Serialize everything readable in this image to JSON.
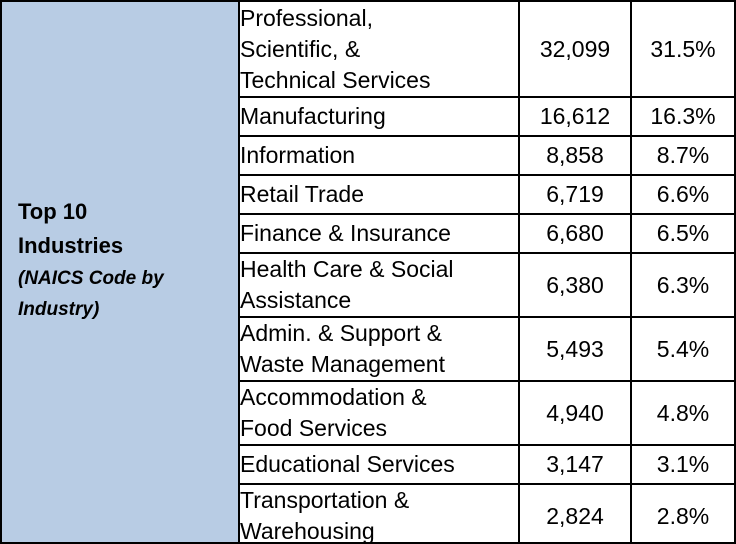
{
  "side": {
    "title_line1": "Top 10",
    "title_line2": "Industries",
    "subtitle_line1": "(NAICS Code by",
    "subtitle_line2": "Industry)"
  },
  "rows": [
    {
      "lines": [
        "Professional,",
        "Scientific, &",
        "Technical Services"
      ],
      "count": "32,099",
      "percent": "31.5%"
    },
    {
      "lines": [
        "Manufacturing"
      ],
      "count": "16,612",
      "percent": "16.3%"
    },
    {
      "lines": [
        "Information"
      ],
      "count": "8,858",
      "percent": "8.7%"
    },
    {
      "lines": [
        "Retail Trade"
      ],
      "count": "6,719",
      "percent": "6.6%"
    },
    {
      "lines": [
        "Finance & Insurance"
      ],
      "count": "6,680",
      "percent": "6.5%"
    },
    {
      "lines": [
        "Health Care & Social",
        "Assistance"
      ],
      "count": "6,380",
      "percent": "6.3%"
    },
    {
      "lines": [
        "Admin. & Support &",
        "Waste Management"
      ],
      "count": "5,493",
      "percent": "5.4%"
    },
    {
      "lines": [
        "Accommodation &",
        "Food Services"
      ],
      "count": "4,940",
      "percent": "4.8%"
    },
    {
      "lines": [
        "Educational Services"
      ],
      "count": "3,147",
      "percent": "3.1%"
    },
    {
      "lines": [
        "Transportation &",
        "Warehousing"
      ],
      "count": "2,824",
      "percent": "2.8%"
    }
  ]
}
